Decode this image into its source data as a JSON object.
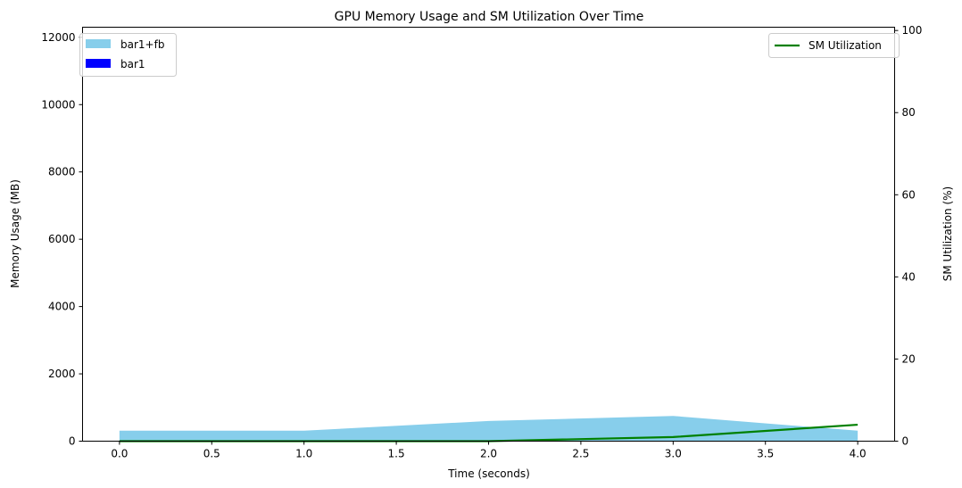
{
  "chart_data": {
    "type": "area",
    "title": "GPU Memory Usage and SM Utilization Over Time",
    "xlabel": "Time (seconds)",
    "ylabel_left": "Memory Usage (MB)",
    "ylabel_right": "SM Utilization (%)",
    "x": [
      0.0,
      1.0,
      2.0,
      3.0,
      4.0
    ],
    "xlim": [
      -0.2,
      4.2
    ],
    "ylim_left": [
      0,
      12300
    ],
    "ylim_right": [
      0,
      100.8
    ],
    "xticks": [
      "0.0",
      "0.5",
      "1.0",
      "1.5",
      "2.0",
      "2.5",
      "3.0",
      "3.5",
      "4.0"
    ],
    "xtick_values": [
      0.0,
      0.5,
      1.0,
      1.5,
      2.0,
      2.5,
      3.0,
      3.5,
      4.0
    ],
    "yticks_left": [
      "0",
      "2000",
      "4000",
      "6000",
      "8000",
      "10000",
      "12000"
    ],
    "ytick_values_left": [
      0,
      2000,
      4000,
      6000,
      8000,
      10000,
      12000
    ],
    "yticks_right": [
      "0",
      "20",
      "40",
      "60",
      "80",
      "100"
    ],
    "ytick_values_right": [
      0,
      20,
      40,
      60,
      80,
      100
    ],
    "series": [
      {
        "name": "bar1+fb",
        "axis": "left",
        "kind": "area",
        "color": "#87CEEB",
        "values": [
          310,
          310,
          600,
          750,
          310
        ]
      },
      {
        "name": "bar1",
        "axis": "left",
        "kind": "area",
        "color": "#0000FF",
        "values": [
          5,
          5,
          5,
          5,
          5
        ]
      },
      {
        "name": "SM Utilization",
        "axis": "right",
        "kind": "line",
        "color": "#008000",
        "values": [
          0,
          0,
          0,
          1,
          4
        ]
      }
    ],
    "legend_left_position": "upper-left",
    "legend_right_position": "upper-right",
    "grid": false,
    "ylabel_left_color": "#0000FF",
    "ylabel_right_color": "#008000"
  }
}
